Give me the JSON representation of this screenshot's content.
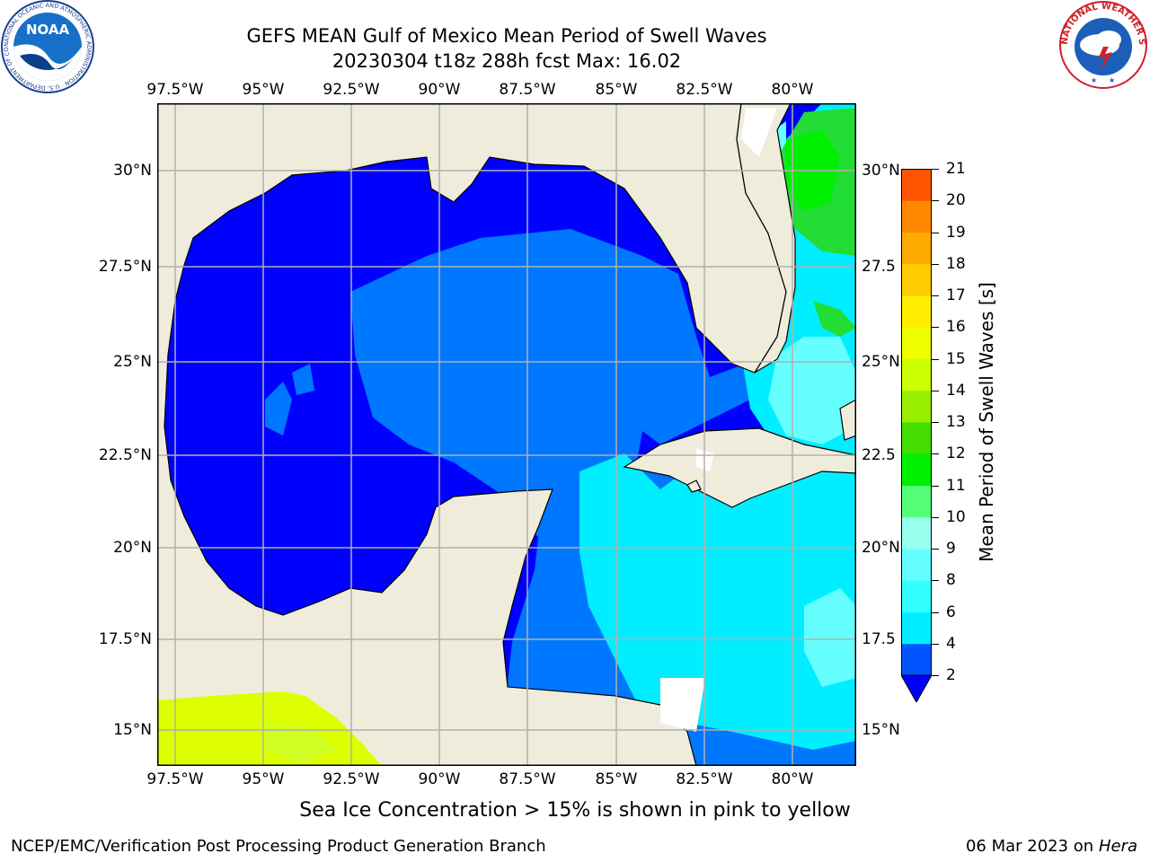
{
  "header": {
    "title_line1": "GEFS MEAN Gulf of Mexico Mean Period of Swell Waves",
    "title_line2": "20230304 t18z 288h fcst   Max: 16.02"
  },
  "map": {
    "lon_ticks": [
      "97.5°W",
      "95°W",
      "92.5°W",
      "90°W",
      "87.5°W",
      "85°W",
      "82.5°W",
      "80°W"
    ],
    "lat_ticks_left": [
      "30°N",
      "27.5°N",
      "25°N",
      "22.5°N",
      "20°N",
      "17.5°N",
      "15°N"
    ],
    "lat_ticks_right": [
      "30°N",
      "27.5",
      "25°N",
      "22.5",
      "20°N",
      "17.5",
      "15°N"
    ],
    "extent": {
      "lon_min": -98.0,
      "lon_max": -78.2,
      "lat_min": 14.0,
      "lat_max": 31.8
    },
    "colors": {
      "land": "#efecdc",
      "gridline": "#b0b0b0",
      "coast": "#000000"
    }
  },
  "colorbar": {
    "label": "Mean Period of Swell Waves [s]",
    "tick_labels": [
      "2",
      "4",
      "6",
      "8",
      "9",
      "10",
      "11",
      "12",
      "13",
      "14",
      "15",
      "16",
      "17",
      "18",
      "19",
      "20",
      "21"
    ],
    "colors": [
      "#0055ff",
      "#00eeff",
      "#33ffff",
      "#66ffff",
      "#99ffee",
      "#55ff77",
      "#00ee00",
      "#44dd00",
      "#99ee00",
      "#ccff00",
      "#eeff00",
      "#ffee00",
      "#ffcc00",
      "#ffaa00",
      "#ff8800",
      "#ff5500",
      "#ff2200",
      "#ff0000"
    ],
    "under_color": "#0000ff"
  },
  "footer": {
    "note": "Sea Ice Concentration > 15% is shown in pink to yellow",
    "credit": "NCEP/EMC/Verification Post Processing Product Generation Branch",
    "date": "06 Mar 2023 on",
    "host": "Hera"
  },
  "logos": {
    "noaa": {
      "text": "NOAA",
      "ring_text": "NATIONAL OCEANIC AND ATMOSPHERIC ADMINISTRATION · U.S. DEPARTMENT OF COMMERCE"
    },
    "nws": {
      "ring_text": "NATIONAL WEATHER SERVICE"
    }
  }
}
